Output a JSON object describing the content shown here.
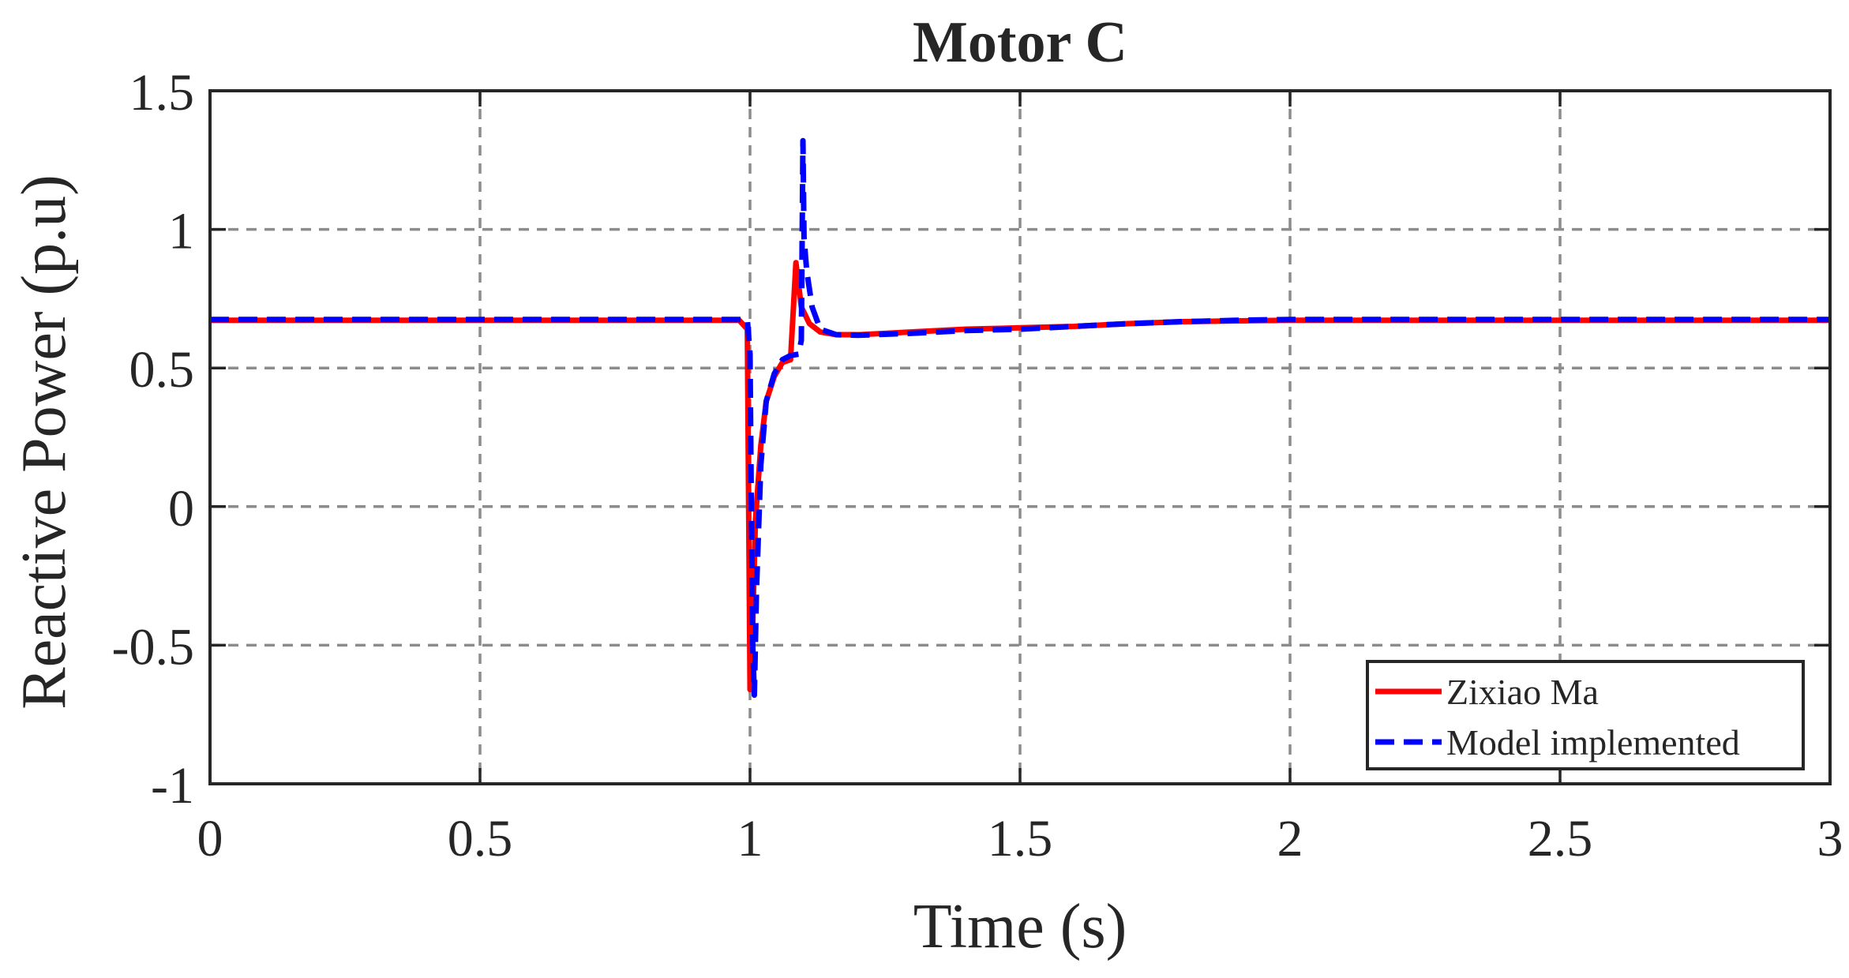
{
  "chart_data": {
    "type": "line",
    "title": "Motor C",
    "xlabel": "Time (s)",
    "ylabel": "Reactive Power (p.u)",
    "xlim": [
      0,
      3
    ],
    "ylim": [
      -1,
      1.5
    ],
    "xticks": [
      0,
      0.5,
      1,
      1.5,
      2,
      2.5,
      3
    ],
    "xtick_labels": [
      "0",
      "0.5",
      "1",
      "1.5",
      "2",
      "2.5",
      "3"
    ],
    "yticks": [
      -1,
      -0.5,
      0,
      0.5,
      1,
      1.5
    ],
    "ytick_labels": [
      "-1",
      "-0.5",
      "0",
      "0.5",
      "1",
      "1.5"
    ],
    "grid": true,
    "legend_position": "bottom-right",
    "series": [
      {
        "name": "Zixiao Ma",
        "color": "#ff0000",
        "style": "solid",
        "x": [
          0,
          0.5,
          0.98,
          0.995,
          1.0,
          1.005,
          1.01,
          1.02,
          1.03,
          1.045,
          1.06,
          1.075,
          1.085,
          1.095,
          1.11,
          1.13,
          1.16,
          1.2,
          1.3,
          1.4,
          1.5,
          1.6,
          1.7,
          1.8,
          1.9,
          2.0,
          2.5,
          3.0
        ],
        "y": [
          0.672,
          0.672,
          0.672,
          0.64,
          -0.66,
          -0.42,
          -0.05,
          0.22,
          0.38,
          0.47,
          0.52,
          0.53,
          0.88,
          0.72,
          0.66,
          0.63,
          0.62,
          0.62,
          0.63,
          0.64,
          0.645,
          0.65,
          0.66,
          0.667,
          0.67,
          0.672,
          0.672,
          0.672
        ]
      },
      {
        "name": "Model implemented",
        "color": "#0000ff",
        "style": "dashed",
        "x": [
          0,
          0.5,
          0.995,
          1.0,
          1.002,
          1.005,
          1.008,
          1.012,
          1.02,
          1.03,
          1.045,
          1.06,
          1.075,
          1.09,
          1.095,
          1.098,
          1.1,
          1.105,
          1.115,
          1.13,
          1.16,
          1.2,
          1.3,
          1.4,
          1.5,
          1.6,
          1.7,
          1.8,
          1.9,
          2.0,
          2.5,
          3.0
        ],
        "y": [
          0.675,
          0.675,
          0.675,
          0.55,
          0.1,
          -0.5,
          -0.68,
          -0.3,
          0.15,
          0.38,
          0.48,
          0.53,
          0.545,
          0.55,
          0.6,
          1.32,
          0.97,
          0.85,
          0.72,
          0.64,
          0.62,
          0.618,
          0.625,
          0.635,
          0.64,
          0.65,
          0.66,
          0.667,
          0.672,
          0.675,
          0.675,
          0.675
        ]
      }
    ]
  }
}
